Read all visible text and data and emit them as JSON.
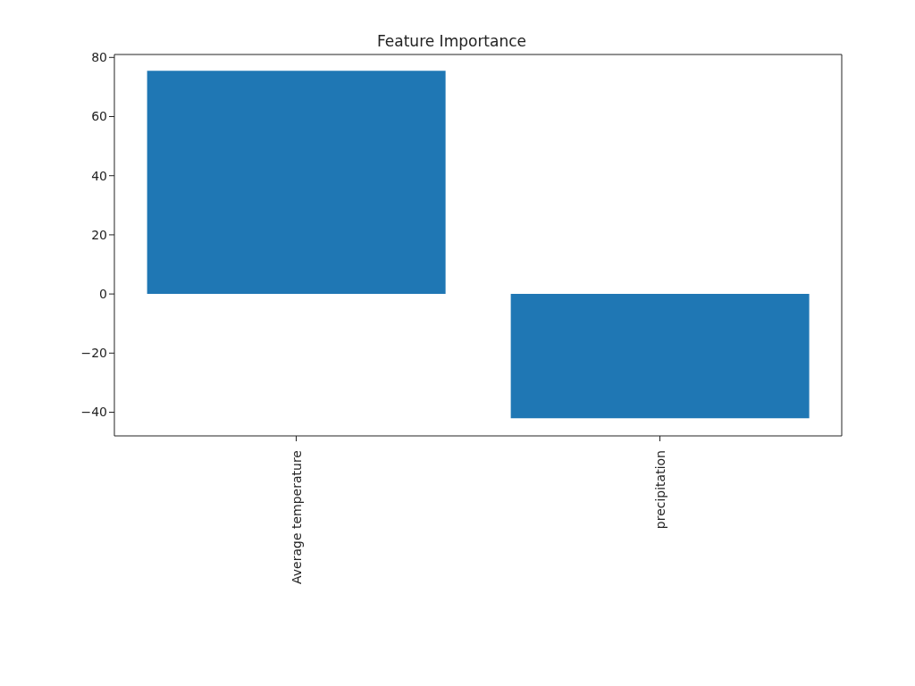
{
  "chart_data": {
    "type": "bar",
    "title": "Feature Importance",
    "categories": [
      "Average temperature",
      "precipitation"
    ],
    "values": [
      75.5,
      -42
    ],
    "color": "#1f77b4",
    "ylim": [
      -48,
      81
    ],
    "yticks": [
      -40,
      -20,
      0,
      20,
      40,
      60,
      80
    ],
    "grid": false,
    "legend": false
  }
}
